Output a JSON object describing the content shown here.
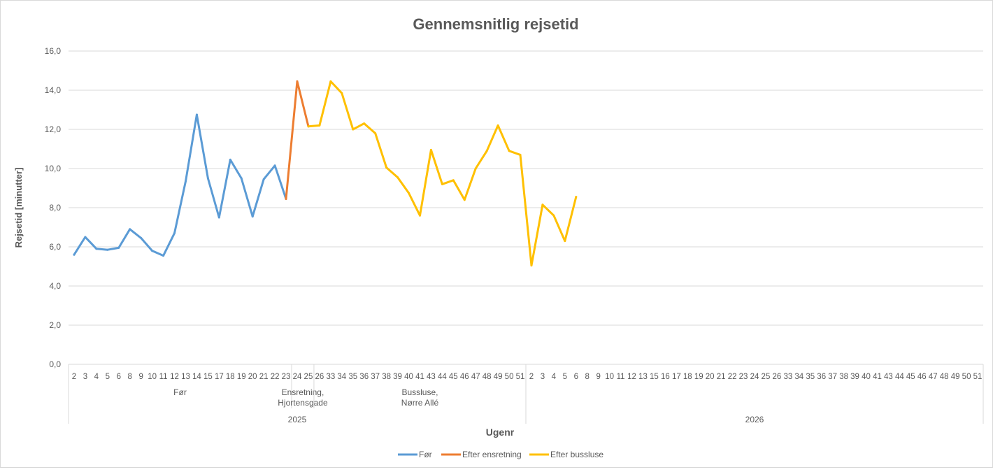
{
  "chart_data": {
    "type": "line",
    "title": "Gennemsnitlig rejsetid",
    "xlabel": "Ugenr",
    "ylabel": "Rejsetid [minutter]",
    "ylim": [
      0,
      16
    ],
    "yticks": [
      "0,0",
      "2,0",
      "4,0",
      "6,0",
      "8,0",
      "10,0",
      "12,0",
      "14,0",
      "16,0"
    ],
    "grid": true,
    "legend_position": "bottom",
    "groups": [
      {
        "year": "2025",
        "periods": [
          {
            "label": "Før",
            "weeks": [
              "2",
              "3",
              "4",
              "5",
              "6",
              "8",
              "9",
              "10",
              "11",
              "12",
              "13",
              "14",
              "15",
              "17",
              "18",
              "19",
              "20",
              "21",
              "22",
              "23"
            ]
          },
          {
            "label": "Ensretning, Hjortensgade",
            "weeks": [
              "24",
              "25"
            ]
          },
          {
            "label": "Bussluse, Nørre Allé",
            "weeks": [
              "26",
              "33",
              "34",
              "35",
              "36",
              "37",
              "38",
              "39",
              "40",
              "41",
              "43",
              "44",
              "45",
              "46",
              "47",
              "48",
              "49",
              "50",
              "51"
            ]
          }
        ]
      },
      {
        "year": "2026",
        "periods": [
          {
            "label": "",
            "weeks": [
              "2",
              "3",
              "4",
              "5",
              "6",
              "8",
              "9",
              "10",
              "11",
              "12",
              "13",
              "15",
              "16",
              "17",
              "18",
              "19",
              "20",
              "21",
              "22",
              "23",
              "24",
              "25",
              "26",
              "33",
              "34",
              "35",
              "36",
              "37",
              "38",
              "39",
              "40",
              "41",
              "43",
              "44",
              "45",
              "46",
              "47",
              "48",
              "49",
              "50",
              "51"
            ]
          }
        ]
      }
    ],
    "series": [
      {
        "name": "Før",
        "color": "#5b9bd5",
        "values": [
          5.6,
          6.5,
          5.9,
          5.85,
          5.95,
          6.9,
          6.45,
          5.8,
          5.55,
          6.7,
          9.35,
          12.75,
          9.5,
          7.5,
          10.45,
          9.5,
          7.55,
          9.45,
          10.15,
          8.45
        ]
      },
      {
        "name": "Efter ensretning",
        "color": "#ed7d31",
        "start_index": 19,
        "values": [
          8.45,
          14.45,
          12.15
        ]
      },
      {
        "name": "Efter bussluse",
        "color": "#ffc000",
        "start_index": 21,
        "values": [
          12.15,
          12.2,
          14.45,
          13.85,
          12.0,
          12.3,
          11.8,
          10.05,
          9.55,
          8.75,
          7.6,
          10.95,
          9.2,
          9.4,
          8.4,
          10.0,
          10.9,
          12.2,
          10.9,
          10.7,
          5.05,
          8.15,
          7.6,
          6.3,
          8.55
        ]
      }
    ]
  }
}
